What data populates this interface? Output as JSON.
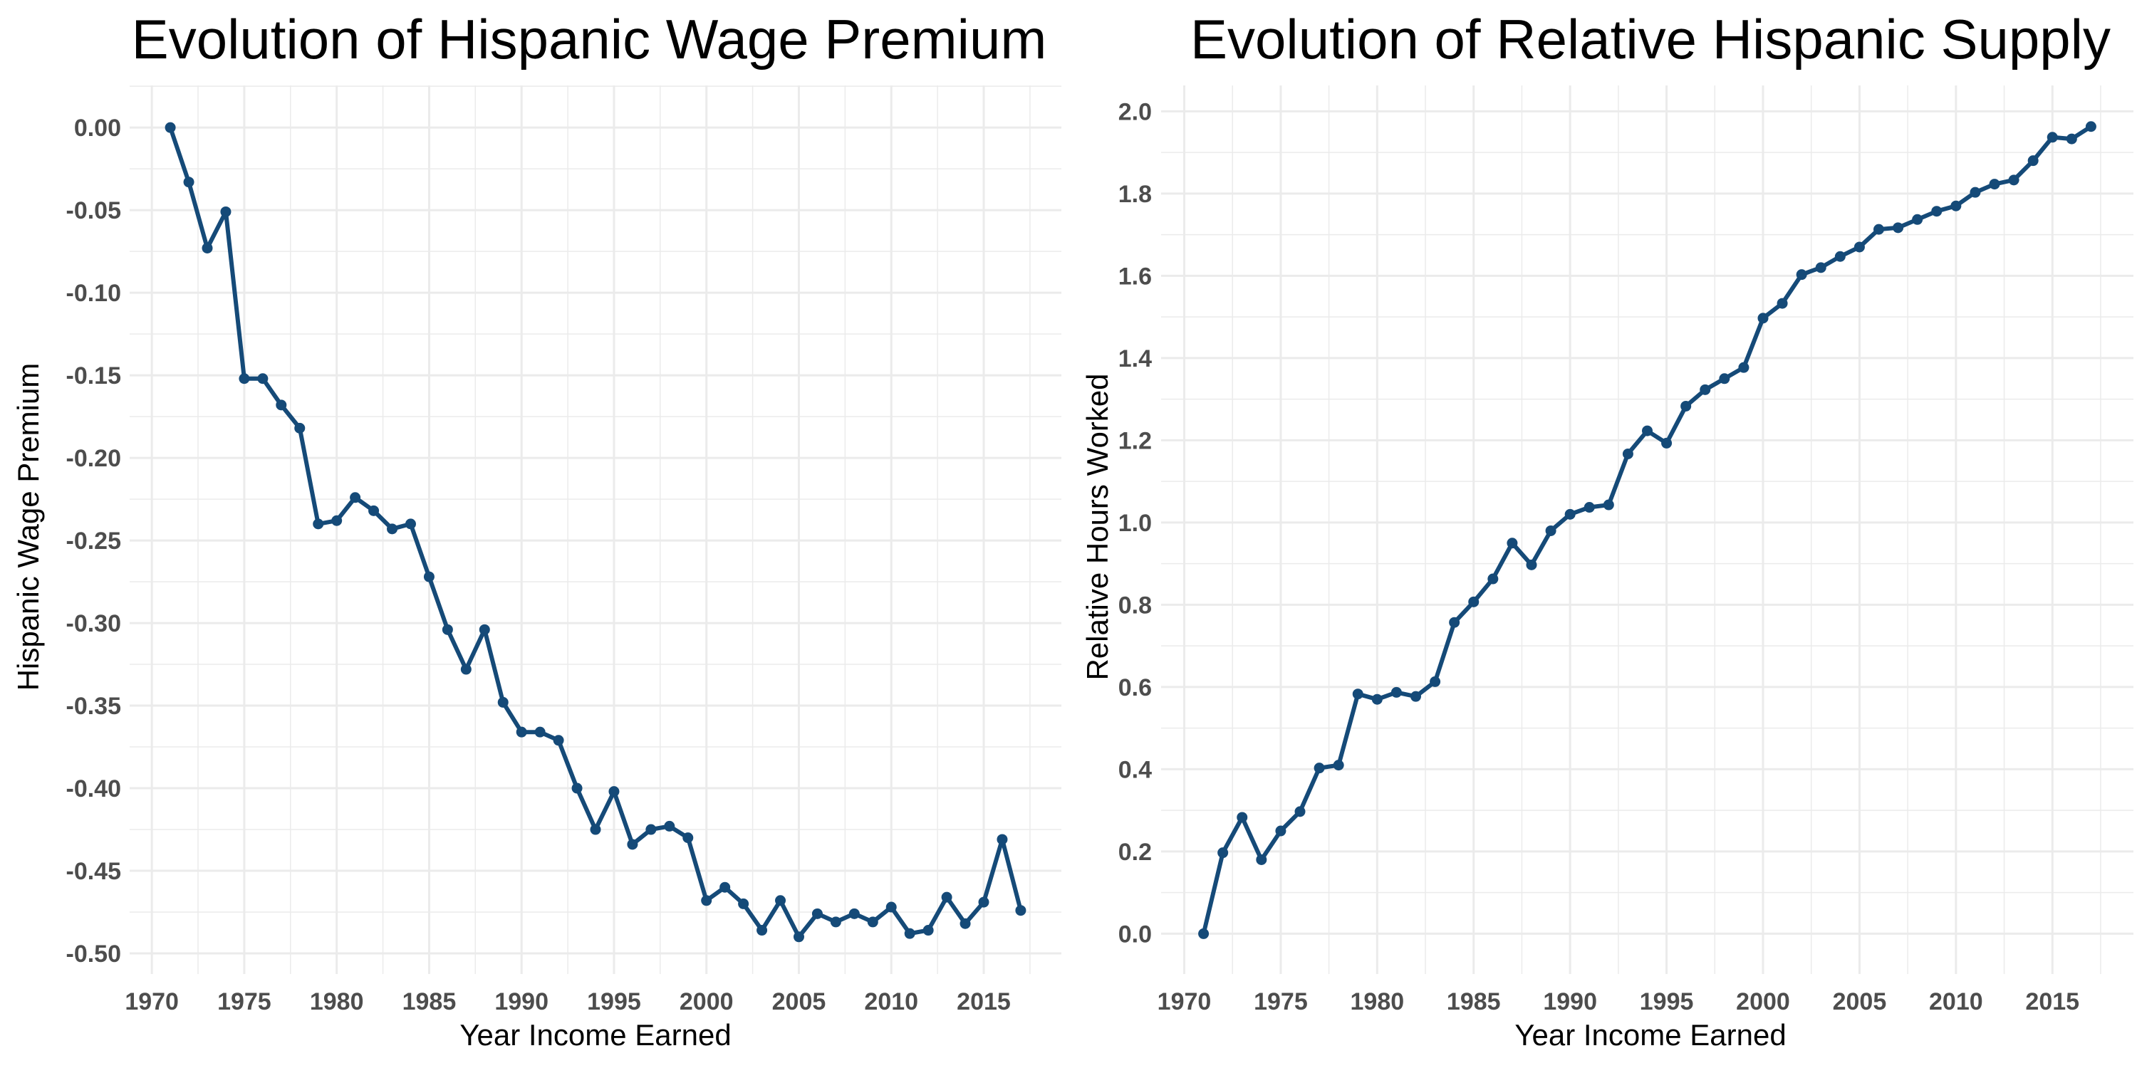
{
  "chart_data": [
    {
      "type": "line",
      "title": "Evolution of Hispanic Wage Premium",
      "xlabel": "Year Income Earned",
      "ylabel": "Hispanic Wage Premium",
      "xlim": [
        1968.8,
        2019.2
      ],
      "ylim": [
        -0.5125,
        0.0255
      ],
      "x_ticks": [
        1970,
        1975,
        1980,
        1985,
        1990,
        1995,
        2000,
        2005,
        2010,
        2015
      ],
      "y_ticks": [
        0.0,
        -0.05,
        -0.1,
        -0.15,
        -0.2,
        -0.25,
        -0.3,
        -0.35,
        -0.4,
        -0.45,
        -0.5
      ],
      "x_tick_labels": [
        "1970",
        "1975",
        "1980",
        "1985",
        "1990",
        "1995",
        "2000",
        "2005",
        "2010",
        "2015"
      ],
      "y_tick_labels": [
        "0.00",
        "-0.05",
        "-0.10",
        "-0.15",
        "-0.20",
        "-0.25",
        "-0.30",
        "-0.35",
        "-0.40",
        "-0.45",
        "-0.50"
      ],
      "grid": true,
      "series": [
        {
          "color": "#154a78",
          "x": [
            1971,
            1972,
            1973,
            1974,
            1975,
            1976,
            1977,
            1978,
            1979,
            1980,
            1981,
            1982,
            1983,
            1984,
            1985,
            1986,
            1987,
            1988,
            1989,
            1990,
            1991,
            1992,
            1993,
            1994,
            1995,
            1996,
            1997,
            1998,
            1999,
            2000,
            2001,
            2002,
            2003,
            2004,
            2005,
            2006,
            2007,
            2008,
            2009,
            2010,
            2011,
            2012,
            2013,
            2014,
            2015,
            2016,
            2017
          ],
          "values": [
            0.0,
            -0.033,
            -0.073,
            -0.051,
            -0.152,
            -0.152,
            -0.168,
            -0.182,
            -0.24,
            -0.238,
            -0.224,
            -0.232,
            -0.243,
            -0.24,
            -0.272,
            -0.304,
            -0.328,
            -0.304,
            -0.348,
            -0.366,
            -0.366,
            -0.371,
            -0.4,
            -0.425,
            -0.402,
            -0.434,
            -0.425,
            -0.423,
            -0.43,
            -0.468,
            -0.46,
            -0.47,
            -0.486,
            -0.468,
            -0.49,
            -0.476,
            -0.481,
            -0.476,
            -0.481,
            -0.472,
            -0.488,
            -0.486,
            -0.466,
            -0.482,
            -0.469,
            -0.431,
            -0.474
          ]
        }
      ]
    },
    {
      "type": "line",
      "title": "Evolution of Relative Hispanic Supply",
      "xlabel": "Year Income Earned",
      "ylabel": "Relative Hours Worked",
      "xlim": [
        1968.8,
        2019.2
      ],
      "ylim": [
        -0.098,
        2.063
      ],
      "x_ticks": [
        1970,
        1975,
        1980,
        1985,
        1990,
        1995,
        2000,
        2005,
        2010,
        2015
      ],
      "y_ticks": [
        0.0,
        0.2,
        0.4,
        0.6,
        0.8,
        1.0,
        1.2,
        1.4,
        1.6,
        1.8,
        2.0
      ],
      "x_tick_labels": [
        "1970",
        "1975",
        "1980",
        "1985",
        "1990",
        "1995",
        "2000",
        "2005",
        "2010",
        "2015"
      ],
      "y_tick_labels": [
        "0.0",
        "0.2",
        "0.4",
        "0.6",
        "0.8",
        "1.0",
        "1.2",
        "1.4",
        "1.6",
        "1.8",
        "2.0"
      ],
      "grid": true,
      "series": [
        {
          "color": "#154a78",
          "x": [
            1971,
            1972,
            1973,
            1974,
            1975,
            1976,
            1977,
            1978,
            1979,
            1980,
            1981,
            1982,
            1983,
            1984,
            1985,
            1986,
            1987,
            1988,
            1989,
            1990,
            1991,
            1992,
            1993,
            1994,
            1995,
            1996,
            1997,
            1998,
            1999,
            2000,
            2001,
            2002,
            2003,
            2004,
            2005,
            2006,
            2007,
            2008,
            2009,
            2010,
            2011,
            2012,
            2013,
            2014,
            2015,
            2016,
            2017
          ],
          "values": [
            0.0,
            0.197,
            0.283,
            0.18,
            0.25,
            0.297,
            0.403,
            0.41,
            0.583,
            0.57,
            0.587,
            0.577,
            0.613,
            0.757,
            0.807,
            0.863,
            0.95,
            0.897,
            0.98,
            1.02,
            1.037,
            1.043,
            1.167,
            1.223,
            1.193,
            1.283,
            1.323,
            1.35,
            1.377,
            1.497,
            1.533,
            1.603,
            1.62,
            1.647,
            1.67,
            1.713,
            1.717,
            1.737,
            1.757,
            1.77,
            1.803,
            1.823,
            1.833,
            1.88,
            1.937,
            1.933,
            1.963
          ]
        }
      ]
    }
  ]
}
